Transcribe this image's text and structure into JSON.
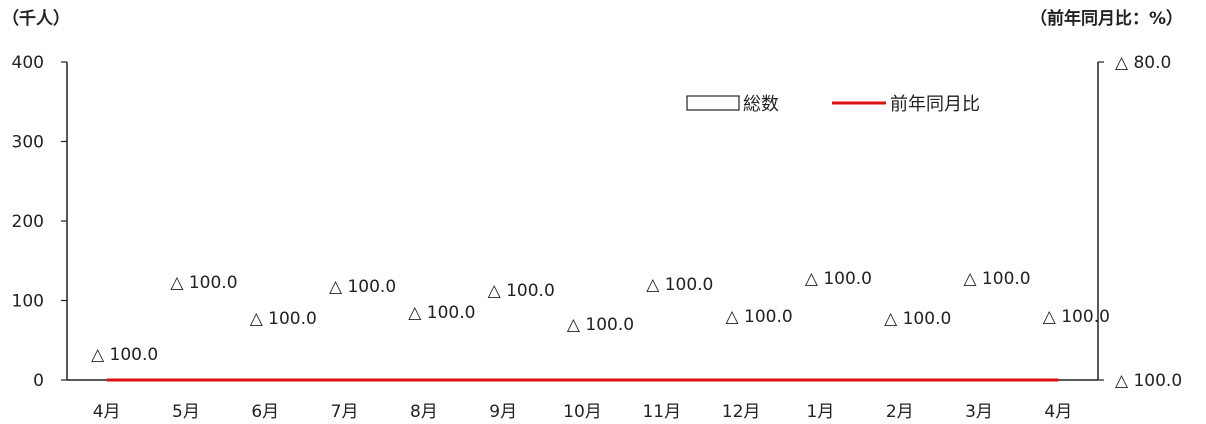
{
  "chart_data": {
    "type": "bar+line",
    "left_axis_unit": "（千人）",
    "right_axis_unit": "（前年同月比：%）",
    "categories": [
      "4月",
      "5月",
      "6月",
      "7月",
      "8月",
      "9月",
      "10月",
      "11月",
      "12月",
      "1月",
      "2月",
      "3月",
      "4月"
    ],
    "left_axis": {
      "ticks": [
        "0",
        "100",
        "200",
        "300",
        "400"
      ],
      "ylim": [
        0,
        400
      ]
    },
    "right_axis": {
      "ticks": [
        "△ 100.0",
        "△ 80.0"
      ],
      "ylim": [
        -100,
        -80
      ]
    },
    "series": [
      {
        "name": "総数",
        "kind": "bar",
        "axis": "left",
        "values": [
          0,
          0,
          0,
          0,
          0,
          0,
          0,
          0,
          0,
          0,
          0,
          0,
          0
        ]
      },
      {
        "name": "前年同月比",
        "kind": "line",
        "axis": "right",
        "color": "#e01010",
        "values": [
          -100,
          -100,
          -100,
          -100,
          -100,
          -100,
          -100,
          -100,
          -100,
          -100,
          -100,
          -100,
          -100
        ]
      }
    ],
    "data_labels": [
      "△ 100.0",
      "△ 100.0",
      "△ 100.0",
      "△ 100.0",
      "△ 100.0",
      "△ 100.0",
      "△ 100.0",
      "△ 100.0",
      "△ 100.0",
      "△ 100.0",
      "△ 100.0",
      "△ 100.0",
      "△ 100.0"
    ],
    "legend": {
      "placement": "top-right"
    },
    "grid": false
  }
}
